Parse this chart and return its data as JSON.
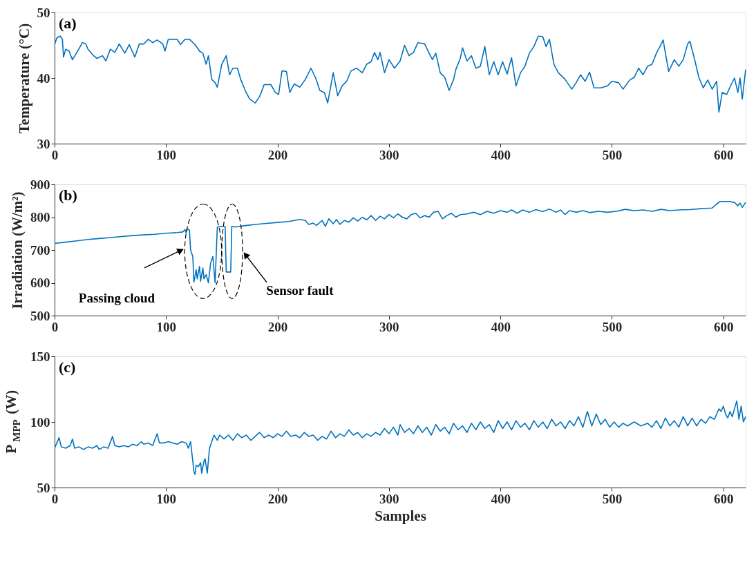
{
  "chart_data": [
    {
      "type": "line",
      "title": "(a)",
      "ylabel": "Temperature (°C)",
      "xlim": [
        0,
        620
      ],
      "xticks": [
        0,
        100,
        200,
        300,
        400,
        500,
        600
      ],
      "ylim": [
        30,
        50
      ],
      "yticks": [
        30,
        40,
        50
      ],
      "grid": false,
      "marker": "none",
      "line_style": "solid",
      "x": [
        0,
        2,
        5,
        7,
        8,
        10,
        13,
        16,
        20,
        25,
        28,
        30,
        35,
        38,
        43,
        46,
        50,
        54,
        58,
        63,
        67,
        72,
        76,
        80,
        84,
        88,
        92,
        97,
        99,
        102,
        110,
        113,
        117,
        121,
        126,
        130,
        133,
        136,
        138,
        141,
        144,
        146,
        150,
        154,
        157,
        160,
        164,
        167,
        171,
        175,
        180,
        184,
        188,
        194,
        198,
        201,
        204,
        208,
        211,
        215,
        220,
        225,
        230,
        234,
        238,
        242,
        245,
        250,
        254,
        258,
        262,
        266,
        271,
        276,
        280,
        284,
        287,
        290,
        292,
        296,
        300,
        305,
        310,
        314,
        318,
        322,
        326,
        332,
        336,
        339,
        342,
        346,
        350,
        354,
        358,
        360,
        364,
        366,
        370,
        374,
        378,
        382,
        386,
        390,
        394,
        398,
        402,
        406,
        410,
        414,
        418,
        422,
        426,
        430,
        434,
        438,
        441,
        444,
        448,
        452,
        458,
        464,
        468,
        472,
        476,
        480,
        484,
        490,
        496,
        500,
        506,
        510,
        516,
        520,
        524,
        528,
        532,
        536,
        540,
        544,
        546,
        548,
        551,
        556,
        560,
        564,
        568,
        570,
        574,
        578,
        582,
        586,
        590,
        594,
        596,
        599,
        603,
        607,
        610,
        613,
        615,
        617,
        620
      ],
      "series": [
        {
          "color": "#0072bd",
          "values": [
            45.1,
            46.1,
            46.4,
            45.9,
            43.2,
            44.4,
            44.1,
            42.8,
            43.9,
            45.4,
            45.2,
            44.4,
            43.4,
            43.0,
            43.4,
            42.6,
            44.4,
            43.9,
            45.2,
            43.8,
            45.1,
            43.2,
            45.2,
            45.2,
            45.9,
            45.4,
            45.8,
            45.2,
            44.1,
            45.9,
            45.9,
            45.1,
            45.9,
            45.9,
            45.1,
            44.1,
            43.8,
            42.1,
            43.4,
            39.8,
            39.3,
            38.6,
            42.1,
            43.4,
            40.5,
            41.5,
            41.5,
            39.8,
            38.1,
            36.8,
            36.2,
            37.2,
            39.0,
            39.0,
            37.8,
            37.5,
            41.1,
            41.0,
            37.8,
            39.1,
            38.6,
            39.8,
            41.5,
            40.1,
            38.1,
            37.8,
            36.2,
            40.8,
            37.3,
            38.8,
            39.5,
            41.1,
            41.5,
            40.8,
            42.1,
            42.5,
            43.9,
            42.8,
            43.9,
            40.8,
            42.8,
            41.5,
            42.6,
            45.0,
            43.4,
            43.9,
            45.4,
            45.2,
            43.8,
            42.8,
            43.8,
            40.8,
            40.1,
            38.1,
            39.8,
            41.3,
            43.0,
            44.6,
            42.6,
            43.4,
            41.5,
            41.8,
            44.8,
            40.5,
            42.5,
            40.5,
            42.5,
            40.6,
            43.1,
            38.8,
            40.8,
            41.8,
            43.8,
            44.8,
            46.4,
            46.3,
            44.8,
            45.9,
            42.1,
            40.8,
            39.8,
            38.3,
            39.3,
            40.5,
            39.5,
            40.9,
            38.5,
            38.5,
            38.8,
            39.5,
            39.3,
            38.3,
            39.7,
            40.1,
            41.5,
            40.5,
            41.8,
            42.1,
            43.8,
            45.1,
            45.8,
            43.8,
            41.0,
            42.8,
            41.8,
            42.8,
            45.2,
            45.6,
            43.0,
            40.1,
            38.5,
            39.7,
            38.3,
            39.5,
            34.8,
            37.8,
            37.5,
            39.0,
            40.0,
            37.8,
            40.0,
            36.8,
            41.3
          ]
        }
      ]
    },
    {
      "type": "line",
      "title": "(b)",
      "ylabel": "Irradiation (W/m²)",
      "xlim": [
        0,
        620
      ],
      "xticks": [
        0,
        100,
        200,
        300,
        400,
        500,
        600
      ],
      "ylim": [
        500,
        900
      ],
      "yticks": [
        500,
        600,
        700,
        800,
        900
      ],
      "grid": false,
      "marker": "none",
      "line_style": "solid",
      "annotations": [
        "Passing cloud",
        "Sensor fault"
      ],
      "x": [
        0,
        10,
        20,
        30,
        40,
        50,
        60,
        70,
        80,
        90,
        100,
        110,
        115,
        117,
        118,
        119,
        121,
        122,
        124,
        125,
        127,
        128,
        130,
        131,
        133,
        134,
        136,
        138,
        140,
        142,
        144,
        146,
        150,
        153,
        154,
        158,
        159,
        162,
        170,
        180,
        190,
        200,
        210,
        220,
        225,
        228,
        232,
        235,
        240,
        243,
        246,
        250,
        253,
        256,
        260,
        264,
        268,
        272,
        276,
        280,
        284,
        288,
        292,
        296,
        300,
        304,
        308,
        312,
        316,
        320,
        324,
        328,
        332,
        336,
        340,
        344,
        348,
        352,
        356,
        360,
        364,
        370,
        376,
        382,
        388,
        394,
        400,
        406,
        410,
        415,
        420,
        426,
        432,
        438,
        444,
        450,
        454,
        458,
        462,
        468,
        474,
        480,
        488,
        496,
        504,
        512,
        520,
        528,
        536,
        544,
        552,
        560,
        570,
        580,
        590,
        594,
        597,
        605,
        610,
        613,
        615,
        617,
        620
      ],
      "series": [
        {
          "color": "#0072bd",
          "values": [
            720,
            724,
            728,
            732,
            735,
            738,
            741,
            744,
            746,
            748,
            751,
            753,
            755,
            762,
            752,
            765,
            760,
            700,
            680,
            602,
            640,
            612,
            650,
            605,
            645,
            612,
            625,
            600,
            660,
            680,
            600,
            770,
            772,
            772,
            633,
            633,
            772,
            770,
            774,
            778,
            781,
            784,
            787,
            793,
            790,
            778,
            782,
            775,
            790,
            772,
            795,
            780,
            793,
            778,
            790,
            785,
            798,
            788,
            800,
            792,
            805,
            790,
            803,
            795,
            808,
            798,
            810,
            800,
            795,
            808,
            812,
            798,
            805,
            800,
            815,
            818,
            795,
            805,
            812,
            800,
            808,
            810,
            815,
            808,
            818,
            812,
            820,
            815,
            822,
            812,
            822,
            815,
            823,
            817,
            825,
            815,
            822,
            808,
            820,
            815,
            820,
            814,
            818,
            815,
            818,
            824,
            820,
            822,
            818,
            824,
            820,
            822,
            823,
            826,
            828,
            840,
            848,
            848,
            845,
            835,
            843,
            830,
            845
          ]
        }
      ]
    },
    {
      "type": "line",
      "title": "(c)",
      "ylabel": "P$_{MPP}$ (W)",
      "xlabel": "Samples",
      "xlim": [
        0,
        620
      ],
      "xticks": [
        0,
        100,
        200,
        300,
        400,
        500,
        600
      ],
      "ylim": [
        50,
        150
      ],
      "yticks": [
        50,
        100,
        150
      ],
      "grid": false,
      "marker": "none",
      "line_style": "solid",
      "x": [
        0,
        2,
        4,
        6,
        10,
        14,
        16,
        18,
        22,
        26,
        30,
        34,
        38,
        40,
        44,
        48,
        52,
        54,
        58,
        62,
        66,
        70,
        74,
        78,
        80,
        84,
        88,
        92,
        94,
        98,
        102,
        106,
        110,
        114,
        118,
        120,
        122,
        124,
        125,
        126,
        127,
        129,
        131,
        132,
        134,
        135,
        137,
        139,
        141,
        143,
        146,
        148,
        152,
        156,
        160,
        164,
        168,
        172,
        176,
        180,
        184,
        188,
        192,
        196,
        200,
        204,
        208,
        212,
        216,
        220,
        224,
        228,
        232,
        236,
        240,
        244,
        248,
        252,
        256,
        260,
        264,
        268,
        272,
        276,
        280,
        284,
        288,
        292,
        296,
        300,
        304,
        308,
        310,
        314,
        318,
        322,
        326,
        330,
        334,
        338,
        342,
        346,
        350,
        354,
        358,
        362,
        366,
        370,
        374,
        378,
        382,
        386,
        390,
        394,
        398,
        402,
        406,
        410,
        414,
        418,
        422,
        426,
        430,
        434,
        438,
        442,
        446,
        450,
        454,
        458,
        462,
        466,
        470,
        474,
        478,
        482,
        486,
        490,
        494,
        498,
        502,
        506,
        510,
        514,
        520,
        526,
        532,
        536,
        540,
        544,
        548,
        552,
        556,
        560,
        564,
        568,
        572,
        576,
        580,
        584,
        588,
        592,
        596,
        598,
        600,
        602,
        604,
        606,
        608,
        612,
        614,
        616,
        618,
        620
      ],
      "series": [
        {
          "color": "#0072bd",
          "values": [
            80,
            84,
            88,
            81,
            80,
            82,
            87,
            80,
            81,
            79,
            81,
            80,
            82,
            79,
            81,
            80,
            89,
            82,
            81,
            82,
            81,
            83,
            82,
            85,
            83,
            84,
            82,
            91,
            84,
            84,
            85,
            84,
            83,
            85,
            84,
            80,
            85,
            70,
            62,
            60,
            67,
            66,
            69,
            61,
            70,
            72,
            61,
            80,
            85,
            90,
            86,
            90,
            87,
            90,
            86,
            91,
            88,
            90,
            86,
            89,
            92,
            88,
            90,
            88,
            91,
            89,
            93,
            89,
            90,
            88,
            92,
            89,
            90,
            86,
            89,
            87,
            93,
            88,
            91,
            89,
            94,
            90,
            92,
            88,
            91,
            89,
            92,
            90,
            95,
            91,
            96,
            90,
            98,
            92,
            95,
            91,
            97,
            92,
            96,
            90,
            98,
            93,
            96,
            91,
            99,
            94,
            97,
            92,
            99,
            94,
            100,
            95,
            98,
            92,
            101,
            95,
            100,
            94,
            101,
            96,
            99,
            94,
            101,
            96,
            100,
            95,
            102,
            97,
            100,
            95,
            101,
            97,
            104,
            96,
            108,
            97,
            106,
            98,
            102,
            96,
            100,
            96,
            99,
            97,
            100,
            97,
            99,
            96,
            101,
            95,
            103,
            97,
            101,
            96,
            104,
            97,
            103,
            97,
            102,
            99,
            104,
            102,
            110,
            108,
            112,
            106,
            103,
            108,
            104,
            116,
            102,
            112,
            100,
            104
          ]
        }
      ]
    }
  ]
}
